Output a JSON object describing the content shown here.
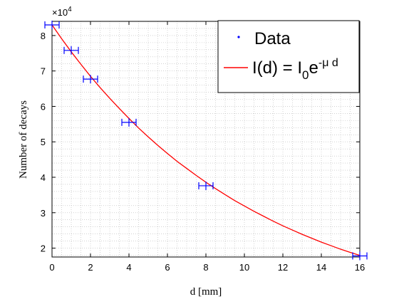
{
  "chart_data": {
    "type": "scatter",
    "xlabel": "d [mm]",
    "ylabel": "Number of decays",
    "xlim": [
      0,
      16
    ],
    "ylim": [
      17500,
      84000
    ],
    "x_ticks": [
      0,
      2,
      4,
      6,
      8,
      10,
      12,
      14,
      16
    ],
    "y_ticks": [
      2,
      3,
      4,
      5,
      6,
      7,
      8
    ],
    "y_tick_labels": [
      "2",
      "3",
      "4",
      "5",
      "6",
      "7",
      "8"
    ],
    "y_multiplier": {
      "base": "×10",
      "exponent": "4"
    },
    "grid": "dotted",
    "legend_position": "top-right",
    "series": [
      {
        "name": "Data",
        "kind": "points",
        "color": "#0000ff",
        "marker": "plus-with-horizontal-error",
        "x": [
          0,
          1,
          2,
          4,
          8,
          16
        ],
        "y": [
          83000,
          75800,
          67700,
          55500,
          37600,
          17800
        ]
      },
      {
        "kind": "fit-line",
        "color": "#ff0000",
        "x": [
          0,
          0.5,
          1,
          1.5,
          2,
          2.5,
          3,
          3.5,
          4,
          4.5,
          5,
          5.5,
          6,
          6.5,
          7,
          7.5,
          8,
          8.5,
          9,
          9.5,
          10,
          10.5,
          11,
          11.5,
          12,
          12.5,
          13,
          13.5,
          14,
          14.5,
          15,
          15.5,
          16
        ],
        "y": [
          83000,
          79100,
          75400,
          71900,
          68500,
          65300,
          62300,
          59400,
          56600,
          53900,
          51400,
          49000,
          46700,
          44500,
          42500,
          40500,
          38600,
          36800,
          35100,
          33400,
          31900,
          30400,
          29000,
          27600,
          26300,
          25100,
          23900,
          22800,
          21700,
          20700,
          19700,
          18800,
          17950
        ]
      }
    ],
    "legend": {
      "data_label": "Data",
      "fit_label": {
        "main": "I(d) = I",
        "sub": "0",
        "e": "e",
        "sup": "-μ d"
      }
    }
  }
}
